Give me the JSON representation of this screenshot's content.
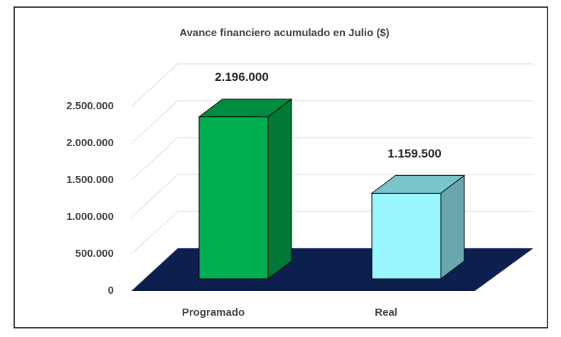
{
  "chart_data": {
    "type": "bar3d",
    "title": "Avance financiero acumulado en Julio ($)",
    "categories": [
      "Programado",
      "Real"
    ],
    "values": [
      2196000,
      1159500
    ],
    "value_labels": [
      "2.196.000",
      "1.159.500"
    ],
    "colors": [
      "#00b050",
      "#99f6ff"
    ],
    "ylim": [
      0,
      3000000
    ],
    "yticks": [
      0,
      {
        "value": 500000,
        "label": "500.000"
      },
      {
        "value": 1000000,
        "label": "1.000.000"
      },
      {
        "value": 1500000,
        "label": "1.500.000"
      },
      {
        "value": 2000000,
        "label": "2.000.000"
      },
      {
        "value": 2500000,
        "label": "2.500.000"
      }
    ],
    "grid": true
  }
}
